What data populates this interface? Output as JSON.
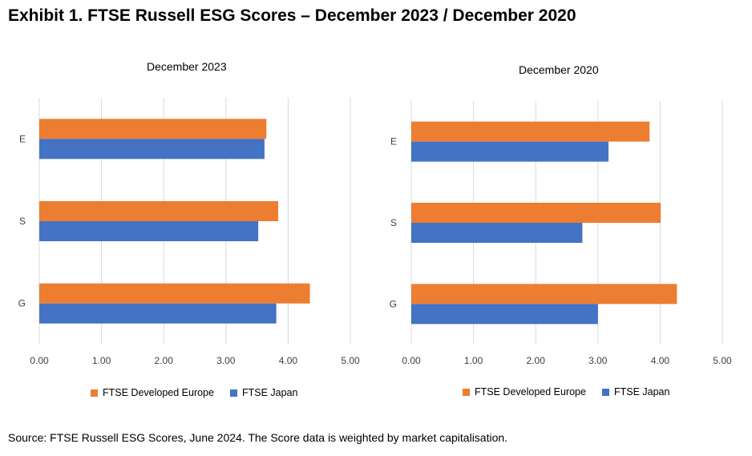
{
  "title": "Exhibit 1. FTSE Russell ESG Scores – December 2023 / December 2020",
  "source": "Source:  FTSE Russell ESG Scores, June 2024. The Score data is weighted by market capitalisation.",
  "colors": {
    "europe": "#ED7D31",
    "japan": "#4472C4",
    "grid": "#D9D9D9"
  },
  "chart_data": [
    {
      "type": "bar",
      "orientation": "horizontal",
      "title": "December 2023",
      "categories": [
        "E",
        "S",
        "G"
      ],
      "series": [
        {
          "name": "FTSE Developed Europe",
          "color": "#ED7D31",
          "values": [
            3.65,
            3.84,
            4.35
          ]
        },
        {
          "name": "FTSE Japan",
          "color": "#4472C4",
          "values": [
            3.62,
            3.52,
            3.81
          ]
        }
      ],
      "xlim": [
        0,
        5
      ],
      "xticks": [
        "0.00",
        "1.00",
        "2.00",
        "3.00",
        "4.00",
        "5.00"
      ],
      "grid": true,
      "legend": "bottom"
    },
    {
      "type": "bar",
      "orientation": "horizontal",
      "title": "December 2020",
      "categories": [
        "E",
        "S",
        "G"
      ],
      "series": [
        {
          "name": "FTSE Developed Europe",
          "color": "#ED7D31",
          "values": [
            3.83,
            4.01,
            4.27
          ]
        },
        {
          "name": "FTSE Japan",
          "color": "#4472C4",
          "values": [
            3.17,
            2.75,
            3.0
          ]
        }
      ],
      "xlim": [
        0,
        5
      ],
      "xticks": [
        "0.00",
        "1.00",
        "2.00",
        "3.00",
        "4.00",
        "5.00"
      ],
      "grid": true,
      "legend": "bottom"
    }
  ]
}
